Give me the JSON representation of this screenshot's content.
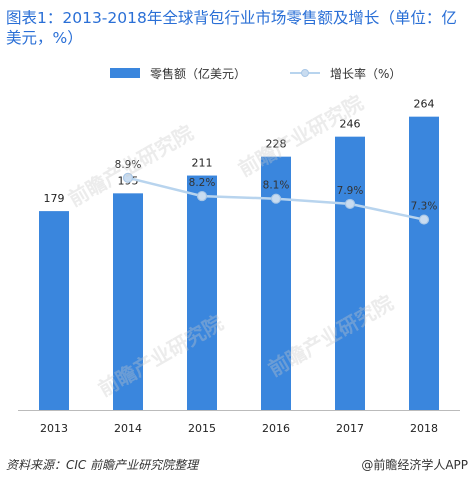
{
  "title": "图表1：2013-2018年全球背包行业市场零售额及增长（单位：亿美元，%）",
  "source": "资料来源：CIC  前瞻产业研究院整理",
  "brand": "@前瞻经济学人APP",
  "watermark": "前瞻产业研究院",
  "colors": {
    "bar": "#3a86dd",
    "line": "#b8d4ee",
    "marker": "#c9dcf0",
    "axis": "#bbbbbb",
    "title": "#2a6fd6"
  },
  "chart_data": {
    "type": "bar",
    "categories": [
      "2013",
      "2014",
      "2015",
      "2016",
      "2017",
      "2018"
    ],
    "series": [
      {
        "name": "零售额（亿美元）",
        "type": "bar",
        "values": [
          179,
          195,
          211,
          228,
          246,
          264
        ],
        "labels": [
          "179",
          "195",
          "211",
          "228",
          "246",
          "264"
        ]
      },
      {
        "name": "增长率（%）",
        "type": "line",
        "values": [
          null,
          8.9,
          8.2,
          8.1,
          7.9,
          7.3
        ],
        "labels": [
          "",
          "8.9%",
          "8.2%",
          "8.1%",
          "7.9%",
          "7.3%"
        ]
      }
    ],
    "ylim": [
      0,
      270
    ],
    "y2lim": [
      0,
      11.5
    ],
    "grid": false,
    "legend": "top"
  }
}
